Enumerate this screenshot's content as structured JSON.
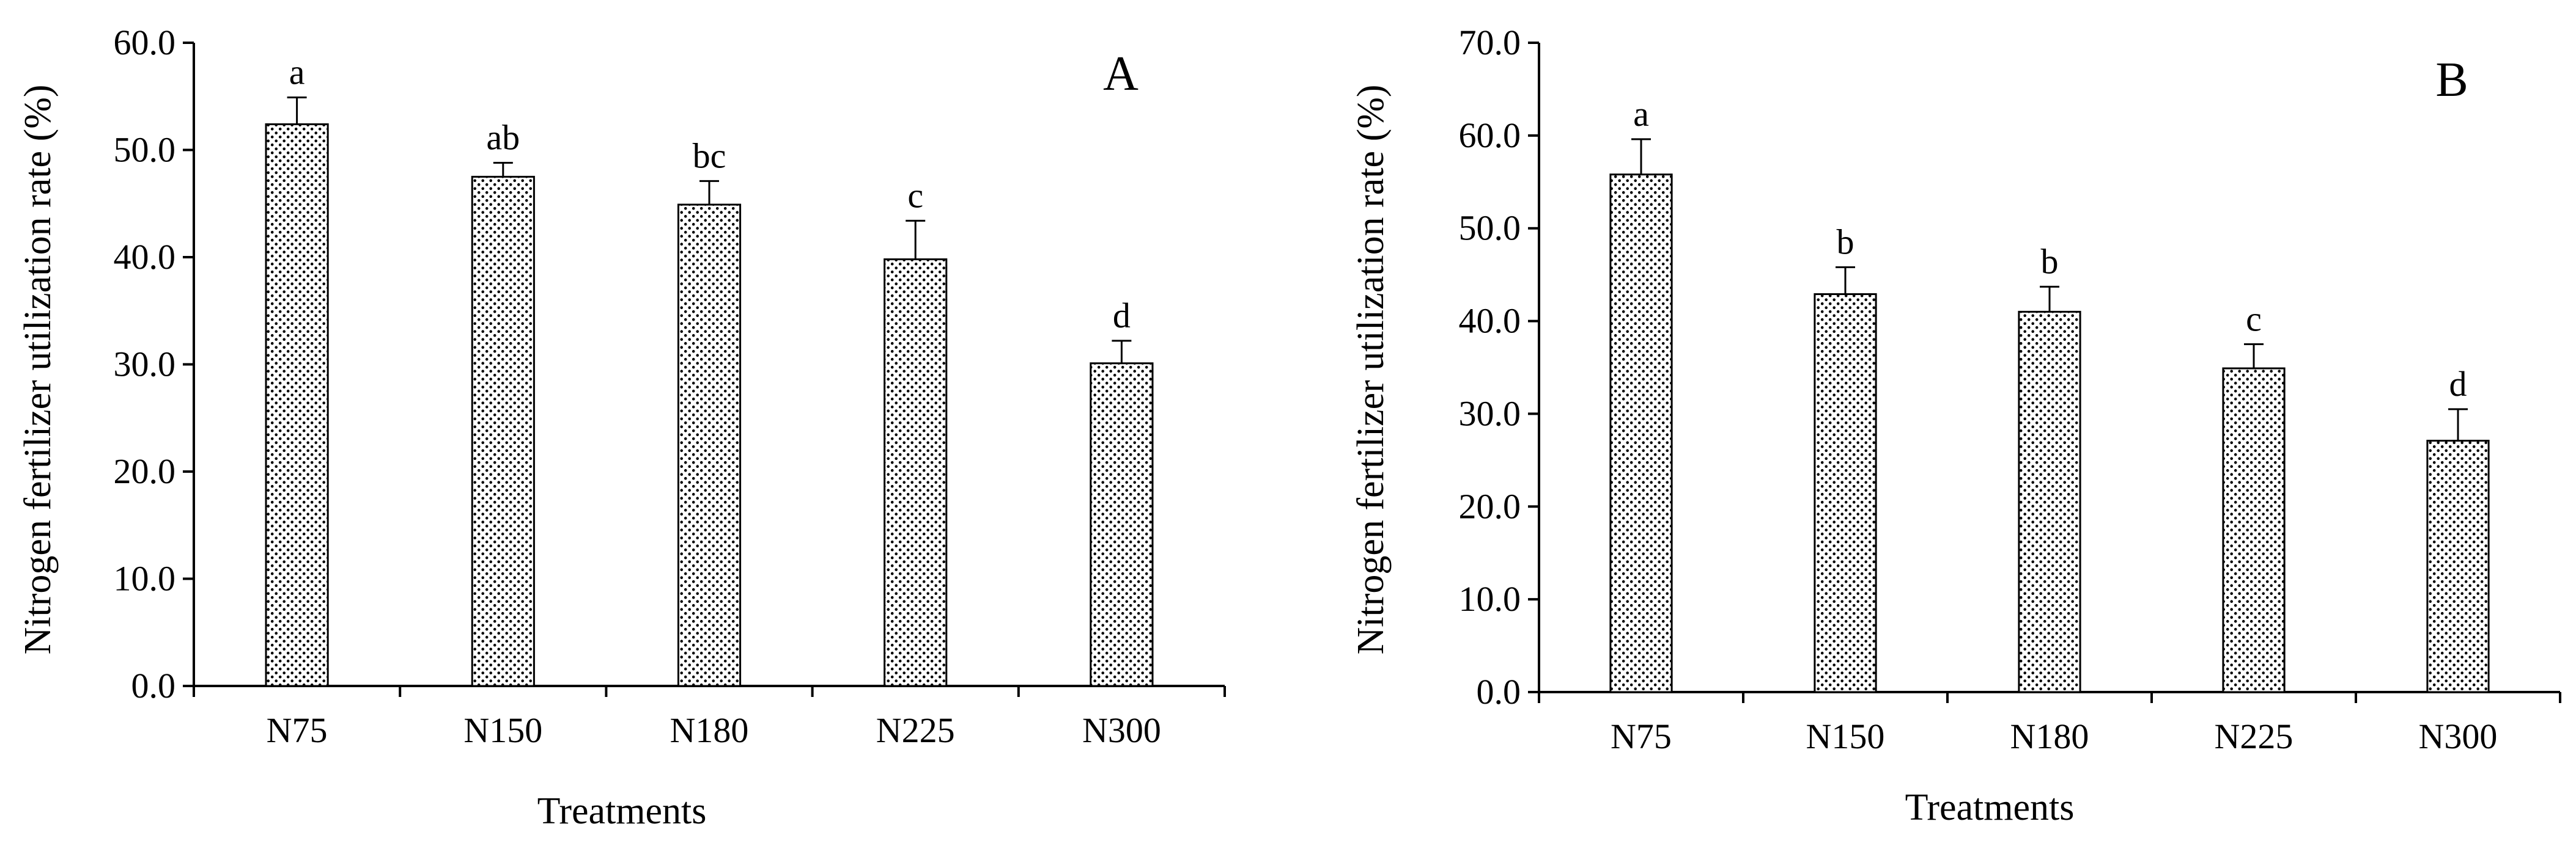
{
  "chart_data": [
    {
      "type": "bar",
      "panel_label": "A",
      "categories": [
        "N75",
        "N150",
        "N180",
        "N225",
        "N300"
      ],
      "values": [
        52.4,
        47.5,
        44.9,
        39.8,
        30.1
      ],
      "errors": [
        2.5,
        1.3,
        2.2,
        3.6,
        2.1
      ],
      "significance": [
        "a",
        "ab",
        "bc",
        "c",
        "d"
      ],
      "xlabel": "Treatments",
      "ylabel": "Nitrogen fertilizer utilization rate (%)",
      "ylim": [
        0,
        60
      ],
      "yticks": [
        "0.0",
        "10.0",
        "20.0",
        "30.0",
        "40.0",
        "50.0",
        "60.0"
      ],
      "grid": false,
      "legend": "none",
      "bar_fill": "dotted"
    },
    {
      "type": "bar",
      "panel_label": "B",
      "categories": [
        "N75",
        "N150",
        "N180",
        "N225",
        "N300"
      ],
      "values": [
        55.8,
        42.9,
        41.0,
        34.9,
        27.1
      ],
      "errors": [
        3.8,
        2.9,
        2.7,
        2.6,
        3.4
      ],
      "significance": [
        "a",
        "b",
        "b",
        "c",
        "d"
      ],
      "xlabel": "Treatments",
      "ylabel": "Nitrogen fertilizer utilization rate (%)",
      "ylim": [
        0,
        70
      ],
      "yticks": [
        "0.0",
        "10.0",
        "20.0",
        "30.0",
        "40.0",
        "50.0",
        "60.0",
        "70.0"
      ],
      "grid": false,
      "legend": "none",
      "bar_fill": "dotted"
    }
  ],
  "colors": {
    "bar_fill": "#ffffff",
    "bar_dots": "#000000",
    "axis": "#000000"
  }
}
